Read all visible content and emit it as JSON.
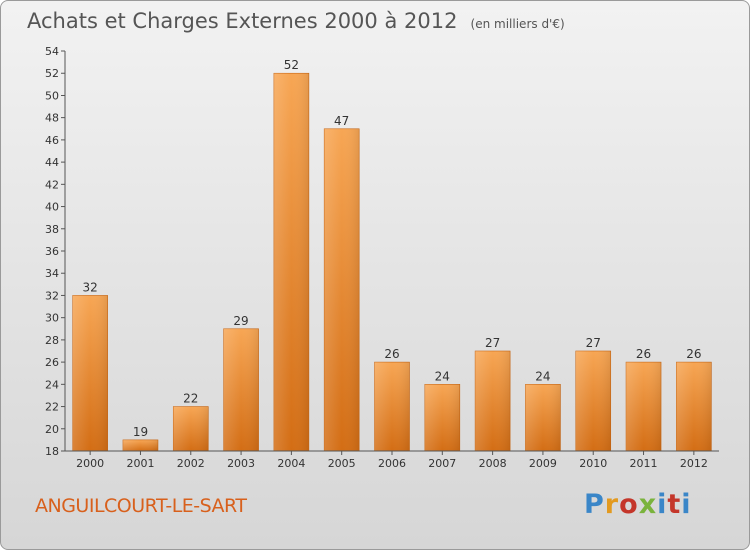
{
  "header": {
    "title": "Achats et Charges Externes 2000 à 2012",
    "subtitle": "(en milliers d'€)"
  },
  "footer": {
    "place": "ANGUILCOURT-LE-SART",
    "brand": "Proxiti"
  },
  "colors": {
    "bar_light": "#f7a654",
    "bar_dark": "#d36d14",
    "place_text": "#d8601c"
  },
  "chart_data": {
    "type": "bar",
    "title": "Achats et Charges Externes 2000 à 2012",
    "subtitle": "(en milliers d'€)",
    "xlabel": "",
    "ylabel": "",
    "categories": [
      "2000",
      "2001",
      "2002",
      "2003",
      "2004",
      "2005",
      "2006",
      "2007",
      "2008",
      "2009",
      "2010",
      "2011",
      "2012"
    ],
    "values": [
      32,
      19,
      22,
      29,
      52,
      47,
      26,
      24,
      27,
      24,
      27,
      26,
      26
    ],
    "data_labels": [
      "32",
      "19",
      "22",
      "29",
      "52",
      "47",
      "26",
      "24",
      "27",
      "24",
      "27",
      "26",
      "26"
    ],
    "ylim": [
      18,
      54
    ],
    "yticks": [
      18,
      20,
      22,
      24,
      26,
      28,
      30,
      32,
      34,
      36,
      38,
      40,
      42,
      44,
      46,
      48,
      50,
      52,
      54
    ],
    "grid": false
  }
}
